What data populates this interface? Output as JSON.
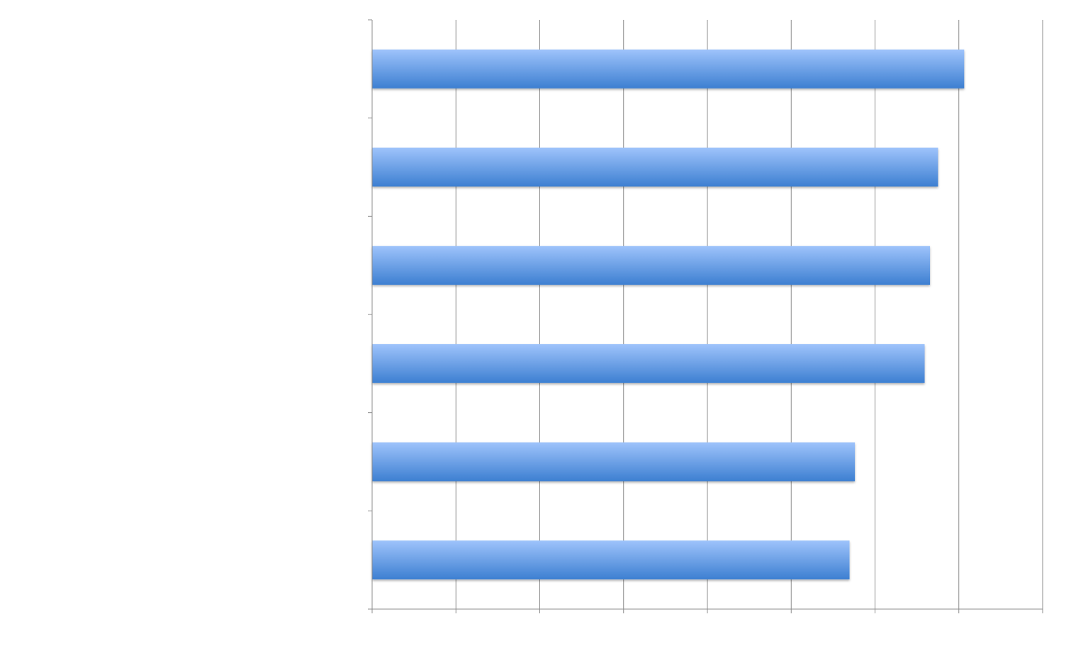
{
  "chart_data": {
    "type": "bar",
    "orientation": "horizontal",
    "title": "",
    "xlabel": "",
    "ylabel": "",
    "categories": [
      "",
      "",
      "",
      "",
      "",
      ""
    ],
    "values": [
      88.3,
      84.4,
      83.2,
      82.4,
      72.0,
      71.2
    ],
    "xlim": [
      0,
      100
    ],
    "x_ticks_count": 8,
    "grid": "vertical-major",
    "legend": "none",
    "tick_labels_shown": false,
    "colors": {
      "bar_top": "#9ec3fb",
      "bar_bottom": "#3d7fd1",
      "gridline": "#8c8c8c",
      "axis": "#8c8c8c",
      "background": "#ffffff"
    }
  }
}
